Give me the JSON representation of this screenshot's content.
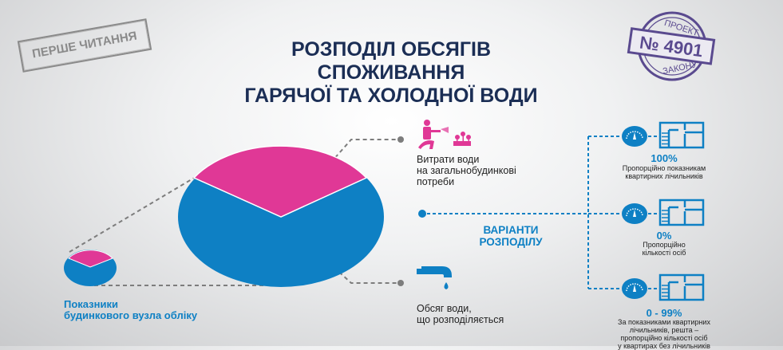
{
  "title_lines": [
    "РОЗПОДІЛ ОБСЯГІВ",
    "СПОЖИВАННЯ",
    "ГАРЯЧОЇ ТА ХОЛОДНОЇ ВОДИ"
  ],
  "stamps": {
    "reading": "ПЕРШЕ ЧИТАННЯ",
    "project_top": "ПРОЕКТ",
    "project_number": "№ 4901",
    "project_bottom": "ЗАКОНУ"
  },
  "building_meter_label": [
    "Показники",
    "будинкового вузла обліку"
  ],
  "common_needs_label": [
    "Витрати води",
    "на загальнобудинкові",
    "потреби"
  ],
  "distributed_label": [
    "Обсяг води,",
    "що розподіляється"
  ],
  "variants_label": [
    "ВАРІАНТИ",
    "РОЗПОДІЛУ"
  ],
  "options": [
    {
      "percent": "100%",
      "description": [
        "Пропорційно показникам",
        "квартирних лічильників"
      ]
    },
    {
      "percent": "0%",
      "description": [
        "Пропорційно",
        "кількості осіб"
      ]
    },
    {
      "percent": "0 - 99%",
      "description": [
        "За показниками квартирних",
        "лічильників, решта –",
        "пропорційно кількості осіб",
        "у квартирах без лічильників"
      ]
    }
  ],
  "icons": [
    "gardener-hose-icon",
    "flowers-icon",
    "water-tap-icon",
    "meter-gauge-icon",
    "apartment-plan-icon"
  ],
  "colors": {
    "blue": "#0e80c4",
    "magenta": "#e03896",
    "title": "#1b2e55",
    "stamp_purple": "#5a4a8f",
    "connector": "#7d7d7d"
  }
}
